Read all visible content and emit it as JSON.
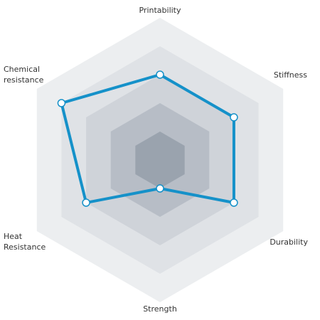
{
  "chart_data": {
    "type": "radar",
    "axes": [
      "Printability",
      "Stiffness",
      "Durability",
      "Strength",
      "Heat Resistance",
      "Chemical resistance"
    ],
    "axis_label_lines": [
      [
        "Printability"
      ],
      [
        "Stiffness"
      ],
      [
        "Durability"
      ],
      [
        "Strength"
      ],
      [
        "Heat",
        "Resistance"
      ],
      [
        "Chemical",
        "resistance"
      ]
    ],
    "levels": 5,
    "max": 5,
    "series": [
      {
        "values": [
          3,
          3,
          3,
          1,
          3,
          4
        ]
      }
    ],
    "colors": {
      "line": "#1591c9",
      "marker_fill": "#ffffff",
      "rings": [
        "#eceef0",
        "#dfe2e6",
        "#cfd3d9",
        "#b7bdc6",
        "#9aa3ae"
      ]
    },
    "legend": false,
    "grid": true
  }
}
